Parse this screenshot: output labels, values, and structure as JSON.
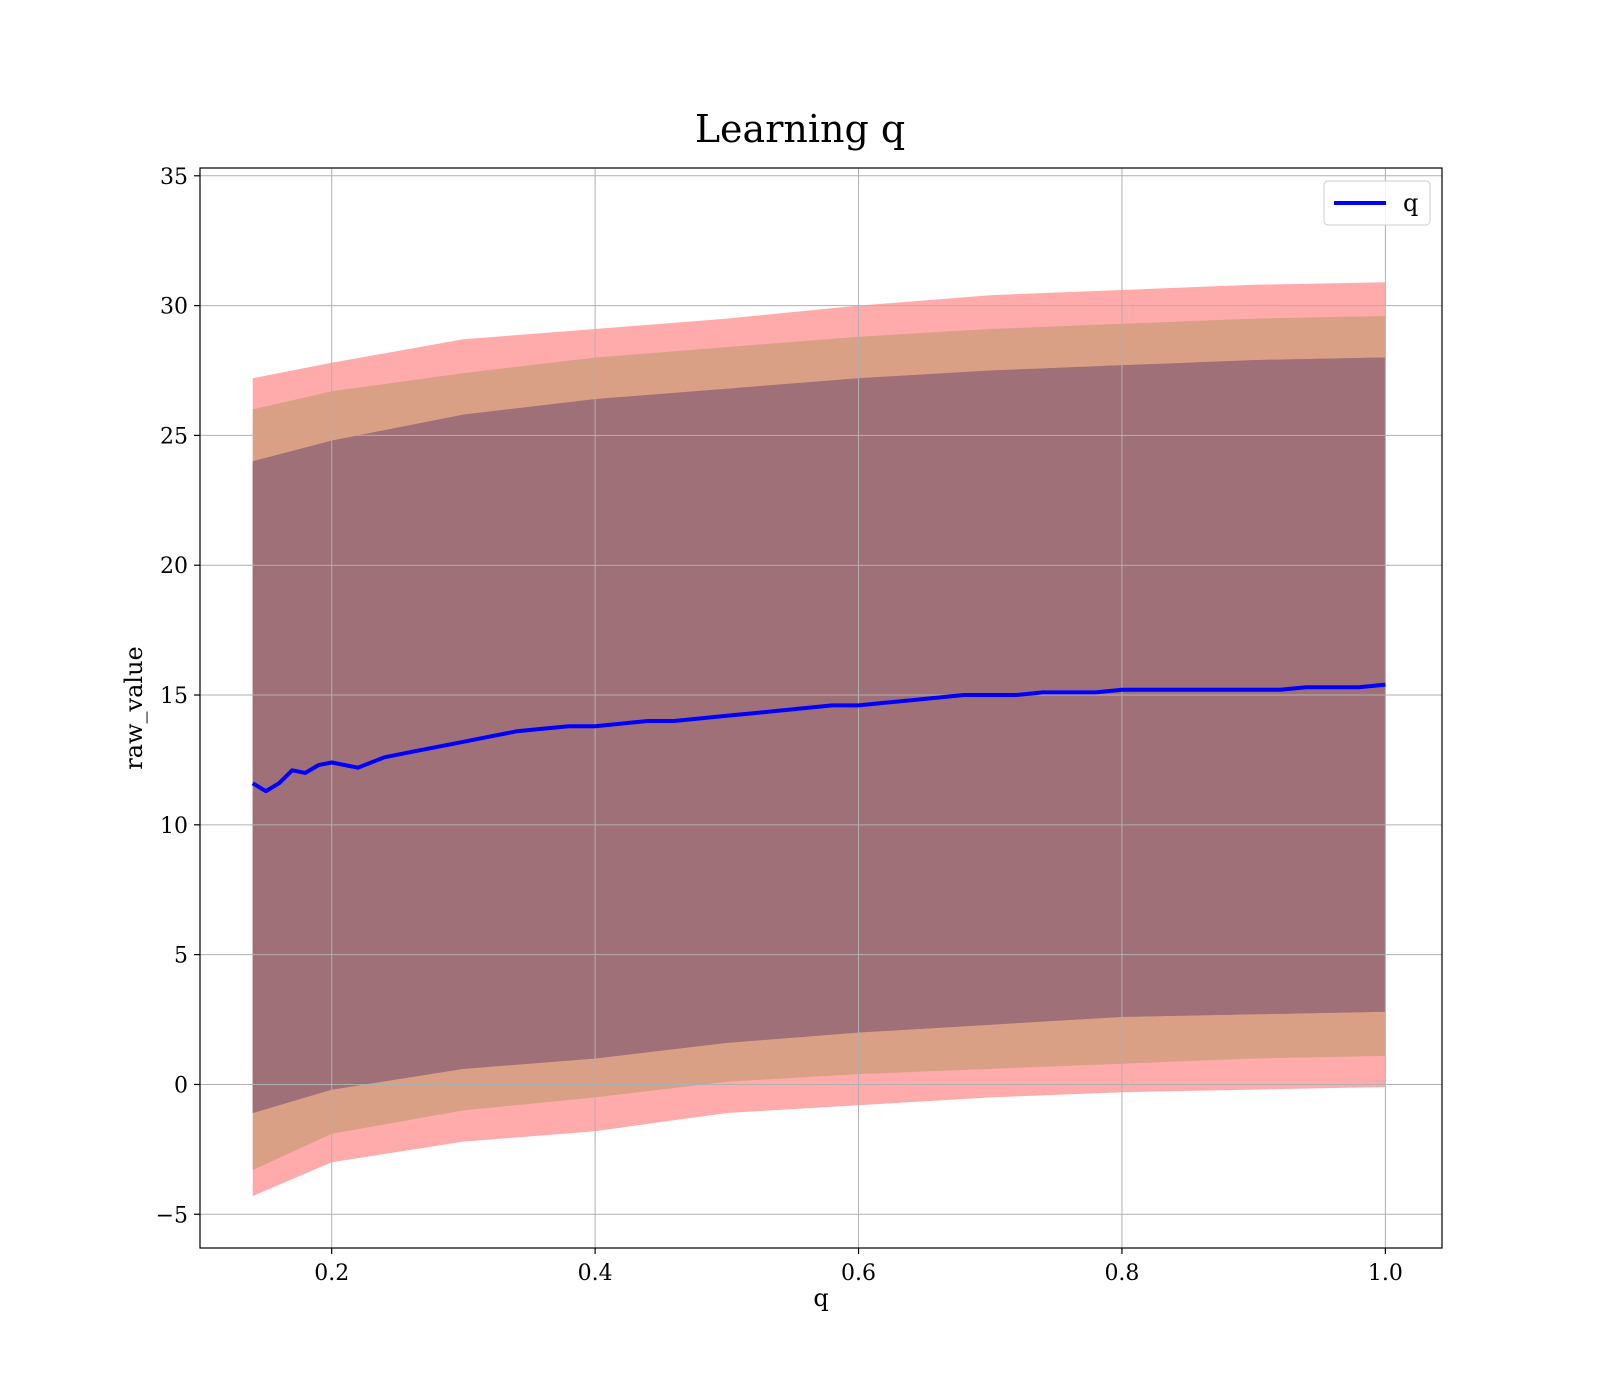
{
  "chart_data": {
    "type": "line",
    "title": "Learning q",
    "xlabel": "q",
    "ylabel": "raw_value",
    "xlim": [
      0.1,
      1.043
    ],
    "ylim": [
      -6.3,
      35.3
    ],
    "xticks": [
      0.2,
      0.4,
      0.6,
      0.8,
      1.0
    ],
    "xtick_labels": [
      "0.2",
      "0.4",
      "0.6",
      "0.8",
      "1.0"
    ],
    "yticks": [
      -5,
      0,
      5,
      10,
      15,
      20,
      25,
      30,
      35
    ],
    "ytick_labels": [
      "−5",
      "0",
      "5",
      "10",
      "15",
      "20",
      "25",
      "30",
      "35"
    ],
    "grid": true,
    "legend": {
      "position": "top-right",
      "entries": [
        "q"
      ]
    },
    "series": [
      {
        "name": "q",
        "color": "#0000ff",
        "x": [
          0.14,
          0.15,
          0.16,
          0.17,
          0.18,
          0.19,
          0.2,
          0.22,
          0.24,
          0.26,
          0.28,
          0.3,
          0.32,
          0.34,
          0.36,
          0.38,
          0.4,
          0.42,
          0.44,
          0.46,
          0.48,
          0.5,
          0.52,
          0.54,
          0.56,
          0.58,
          0.6,
          0.62,
          0.64,
          0.66,
          0.68,
          0.7,
          0.72,
          0.74,
          0.76,
          0.78,
          0.8,
          0.82,
          0.84,
          0.86,
          0.88,
          0.9,
          0.92,
          0.94,
          0.96,
          0.98,
          1.0
        ],
        "y": [
          11.6,
          11.3,
          11.6,
          12.1,
          12.0,
          12.3,
          12.4,
          12.2,
          12.6,
          12.8,
          13.0,
          13.2,
          13.4,
          13.6,
          13.7,
          13.8,
          13.8,
          13.9,
          14.0,
          14.0,
          14.1,
          14.2,
          14.3,
          14.4,
          14.5,
          14.6,
          14.6,
          14.7,
          14.8,
          14.9,
          15.0,
          15.0,
          15.0,
          15.1,
          15.1,
          15.1,
          15.2,
          15.2,
          15.2,
          15.2,
          15.2,
          15.2,
          15.2,
          15.3,
          15.3,
          15.3,
          15.4
        ]
      }
    ],
    "bands": [
      {
        "name": "band_outer",
        "color": "#ff0000",
        "opacity": 0.33,
        "x": [
          0.14,
          0.2,
          0.3,
          0.4,
          0.5,
          0.6,
          0.7,
          0.8,
          0.9,
          1.0
        ],
        "upper": [
          27.2,
          27.8,
          28.7,
          29.1,
          29.5,
          30.0,
          30.4,
          30.6,
          30.8,
          30.9
        ],
        "lower": [
          -4.3,
          -3.0,
          -2.2,
          -1.8,
          -1.1,
          -0.8,
          -0.5,
          -0.3,
          -0.2,
          -0.1
        ]
      },
      {
        "name": "band_middle",
        "color": "#8b8b3a",
        "opacity": 0.33,
        "x": [
          0.14,
          0.2,
          0.3,
          0.4,
          0.5,
          0.6,
          0.7,
          0.8,
          0.9,
          1.0
        ],
        "upper": [
          26.0,
          26.7,
          27.4,
          28.0,
          28.4,
          28.8,
          29.1,
          29.3,
          29.5,
          29.6
        ],
        "lower": [
          -3.3,
          -1.9,
          -1.0,
          -0.5,
          0.1,
          0.4,
          0.6,
          0.8,
          1.0,
          1.1
        ]
      },
      {
        "name": "band_inner",
        "color": "#5a2a6a",
        "opacity": 0.33,
        "x": [
          0.14,
          0.2,
          0.3,
          0.4,
          0.5,
          0.6,
          0.7,
          0.8,
          0.9,
          1.0
        ],
        "upper": [
          24.0,
          24.8,
          25.8,
          26.4,
          26.8,
          27.2,
          27.5,
          27.7,
          27.9,
          28.0
        ],
        "lower": [
          -1.1,
          -0.2,
          0.6,
          1.0,
          1.6,
          2.0,
          2.3,
          2.6,
          2.7,
          2.8
        ]
      },
      {
        "name": "band_core",
        "color": "#a07078",
        "opacity": 1.0,
        "x": [
          0.14,
          0.2,
          0.3,
          0.4,
          0.5,
          0.6,
          0.7,
          0.8,
          0.9,
          1.0
        ],
        "upper": [
          24.0,
          24.8,
          25.8,
          26.4,
          26.8,
          27.2,
          27.5,
          27.7,
          27.9,
          28.0
        ],
        "lower": [
          -1.1,
          -0.2,
          0.6,
          1.0,
          1.6,
          2.0,
          2.3,
          2.6,
          2.7,
          2.8
        ]
      }
    ]
  }
}
